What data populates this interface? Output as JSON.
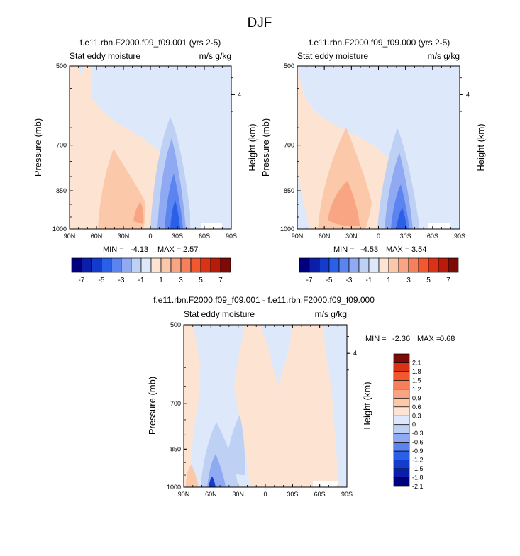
{
  "page_title": "DJF",
  "colors": {
    "palette_top": [
      "#00007F",
      "#0A1EAA",
      "#143CCC",
      "#2A5FE8",
      "#5C84F0",
      "#8FAAF2",
      "#BFD0F5",
      "#DDE9FB",
      "#FDE4D2",
      "#FCC8AA",
      "#F9A583",
      "#F6805C",
      "#F2572E",
      "#D93216",
      "#B81A0C",
      "#7D0A06"
    ],
    "palette_diff": [
      "#00007F",
      "#0A1EAA",
      "#143CCC",
      "#2A5FE8",
      "#5C84F0",
      "#8FAAF2",
      "#BFD0F5",
      "#DDE9FB",
      "#FDE4D2",
      "#FCC8AA",
      "#F9A583",
      "#F6805C",
      "#F2572E",
      "#D93216",
      "#7D0A06"
    ]
  },
  "chart_data": [
    {
      "type": "heatmap",
      "id": "panel_a",
      "title": "f.e11.rbn.F2000.f09_f09.001 (yrs 2-5)",
      "left_label": "Stat eddy moisture",
      "right_label": "m/s g/kg",
      "ylabel": "Pressure (mb)",
      "ylabel_right": "Height (km)",
      "xticks": [
        "90N",
        "60N",
        "30N",
        "0",
        "30S",
        "60S",
        "90S"
      ],
      "yticks": [
        "500",
        "700",
        "850",
        "1000"
      ],
      "ytick_values": [
        500,
        700,
        850,
        1000
      ],
      "right_tick": "4",
      "right_tick_value": 4,
      "min_label": "MIN =",
      "min_value": "-4.13",
      "max_label": "MAX =",
      "max_value": "2.57",
      "colorbar_labels": [
        "-7",
        "-5",
        "-3",
        "-1",
        "1",
        "3",
        "5",
        "7"
      ]
    },
    {
      "type": "heatmap",
      "id": "panel_b",
      "title": "f.e11.rbn.F2000.f09_f09.000 (yrs 2-5)",
      "left_label": "Stat eddy moisture",
      "right_label": "m/s g/kg",
      "ylabel": "Pressure (mb)",
      "ylabel_right": "Height (km)",
      "xticks": [
        "90N",
        "60N",
        "30N",
        "0",
        "30S",
        "60S",
        "90S"
      ],
      "yticks": [
        "500",
        "700",
        "850",
        "1000"
      ],
      "ytick_values": [
        500,
        700,
        850,
        1000
      ],
      "right_tick": "4",
      "right_tick_value": 4,
      "min_label": "MIN =",
      "min_value": "-4.53",
      "max_label": "MAX =",
      "max_value": "3.54",
      "colorbar_labels": [
        "-7",
        "-5",
        "-3",
        "-1",
        "1",
        "3",
        "5",
        "7"
      ]
    },
    {
      "type": "heatmap",
      "id": "panel_diff",
      "title": "f.e11.rbn.F2000.f09_f09.001 - f.e11.rbn.F2000.f09_f09.000",
      "left_label": "Stat eddy moisture",
      "right_label": "m/s g/kg",
      "ylabel": "Pressure (mb)",
      "ylabel_right": "Height (km)",
      "xticks": [
        "90N",
        "60N",
        "30N",
        "0",
        "30S",
        "60S",
        "90S"
      ],
      "yticks": [
        "500",
        "700",
        "850",
        "1000"
      ],
      "ytick_values": [
        500,
        700,
        850,
        1000
      ],
      "right_tick": "4",
      "right_tick_value": 4,
      "min_label": "MIN =",
      "min_value": "-2.36",
      "max_label": "MAX =",
      "max_value": "0.68",
      "colorbar_labels": [
        "2.1",
        "1.8",
        "1.5",
        "1.2",
        "0.9",
        "0.6",
        "0.3",
        "0",
        "-0.3",
        "-0.6",
        "-0.9",
        "-1.2",
        "-1.5",
        "-1.8",
        "-2.1"
      ]
    }
  ]
}
